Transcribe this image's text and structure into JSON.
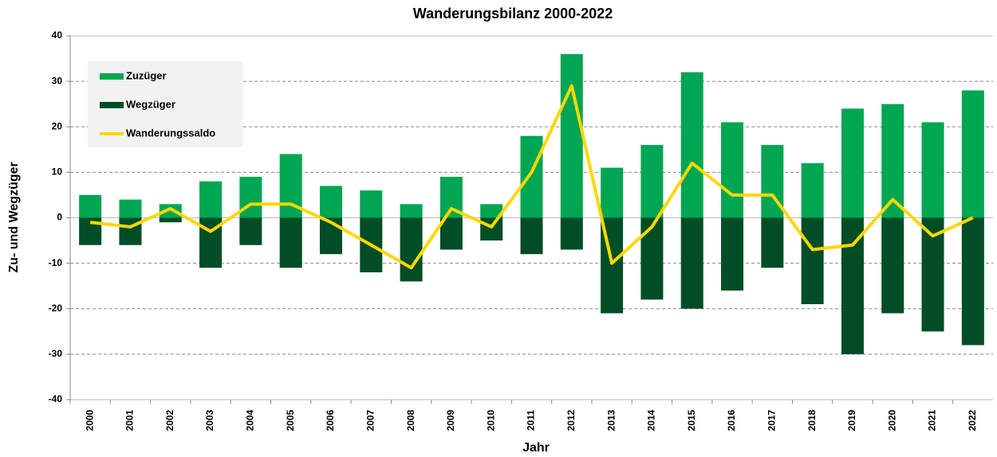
{
  "chart_data": {
    "type": "bar",
    "title": "Wanderungsbilanz 2000-2022",
    "x_label": "Jahr",
    "y_label": "Zu- und Wegzüger",
    "categories": [
      "2000",
      "2001",
      "2002",
      "2003",
      "2004",
      "2005",
      "2006",
      "2007",
      "2008",
      "2009",
      "2010",
      "2011",
      "2012",
      "2013",
      "2014",
      "2015",
      "2016",
      "2017",
      "2018",
      "2019",
      "2020",
      "2021",
      "2022"
    ],
    "series": [
      {
        "name": "Zuzüger",
        "type": "bar",
        "color": "#00a651",
        "values": [
          5,
          4,
          3,
          8,
          9,
          14,
          7,
          6,
          3,
          9,
          3,
          18,
          36,
          11,
          16,
          32,
          21,
          16,
          12,
          24,
          25,
          21,
          28
        ]
      },
      {
        "name": "Wegzüger",
        "type": "bar",
        "color": "#004d26",
        "values": [
          -6,
          -6,
          -1,
          -11,
          -6,
          -11,
          -8,
          -12,
          -14,
          -7,
          -5,
          -8,
          -7,
          -21,
          -18,
          -20,
          -16,
          -11,
          -19,
          -30,
          -21,
          -25,
          -28
        ]
      },
      {
        "name": "Wanderungssaldo",
        "type": "line",
        "color": "#ffd700",
        "values": [
          -1,
          -2,
          2,
          -3,
          3,
          3,
          -1,
          -6,
          -11,
          2,
          -2,
          10,
          29,
          -10,
          -2,
          12,
          5,
          5,
          -7,
          -6,
          4,
          -4,
          0
        ]
      }
    ],
    "ylim": [
      -40,
      40
    ],
    "yticks": [
      -40,
      -30,
      -20,
      -10,
      0,
      10,
      20,
      30,
      40
    ],
    "grid": true,
    "legend": "upper left"
  }
}
